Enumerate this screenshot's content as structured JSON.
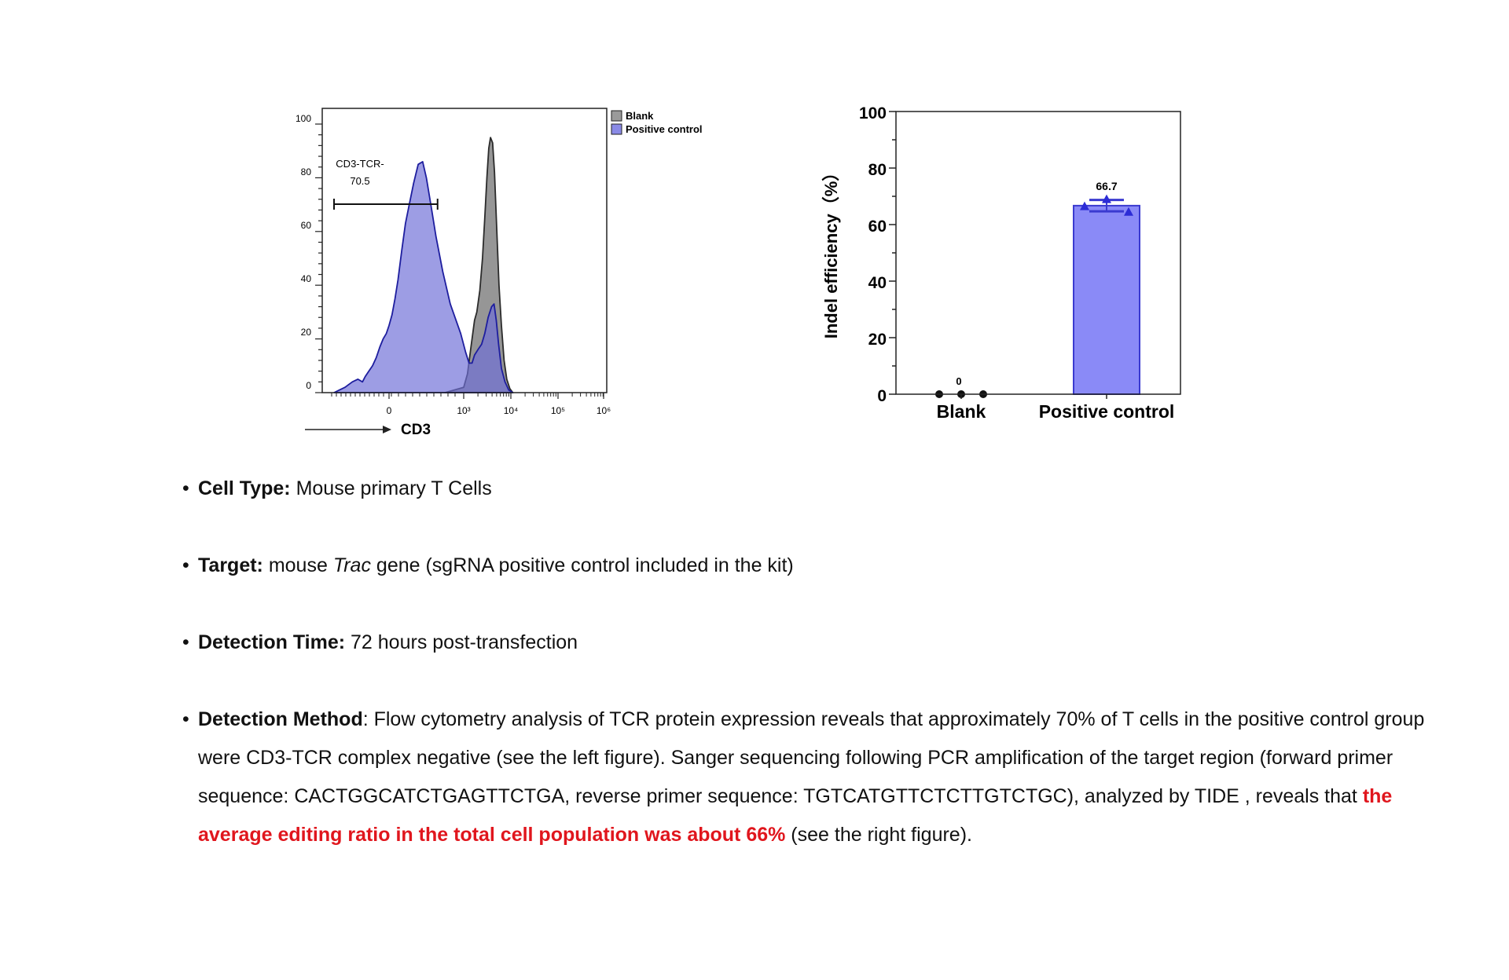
{
  "chart_data": [
    {
      "type": "area",
      "xlabel": "CD3",
      "xlabel_arrow": true,
      "x_scale": "log",
      "x_tick_labels": [
        "0",
        "10³",
        "10⁴",
        "10⁵",
        "10⁶"
      ],
      "y_tick_labels": [
        "0",
        "20",
        "40",
        "60",
        "80",
        "100"
      ],
      "ylim": [
        0,
        100
      ],
      "legend": {
        "placement": "top-right outside",
        "entries": [
          {
            "name": "Blank",
            "color": "#9a9a9a"
          },
          {
            "name": "Positive control",
            "color": "#8a8ae6"
          }
        ]
      },
      "gate": {
        "label": "CD3-TCR-",
        "value": "70.5",
        "range": [
          "-3000",
          "650"
        ]
      },
      "series": [
        {
          "name": "Blank",
          "color": "#909090",
          "points": [
            [
              750,
              0
            ],
            [
              1000,
              2
            ],
            [
              1200,
              7
            ],
            [
              1450,
              18
            ],
            [
              1700,
              27
            ],
            [
              1900,
              30
            ],
            [
              2200,
              38
            ],
            [
              2500,
              50
            ],
            [
              2800,
              65
            ],
            [
              3100,
              80
            ],
            [
              3400,
              91
            ],
            [
              3700,
              95
            ],
            [
              4100,
              93
            ],
            [
              4500,
              82
            ],
            [
              5000,
              62
            ],
            [
              5600,
              40
            ],
            [
              6300,
              25
            ],
            [
              7200,
              12
            ],
            [
              8200,
              5
            ],
            [
              9500,
              1.5
            ],
            [
              11000,
              0
            ]
          ]
        },
        {
          "name": "Positive control",
          "color": "#8585e0",
          "points": [
            [
              -3000,
              0
            ],
            [
              -2700,
              1
            ],
            [
              -2400,
              2
            ],
            [
              -2200,
              3
            ],
            [
              -2000,
              4
            ],
            [
              -1700,
              5
            ],
            [
              -1450,
              4
            ],
            [
              -1300,
              6
            ],
            [
              -1100,
              8
            ],
            [
              -900,
              10
            ],
            [
              -700,
              13
            ],
            [
              -500,
              17
            ],
            [
              -320,
              20
            ],
            [
              -150,
              22
            ],
            [
              0,
              25
            ],
            [
              40,
              29
            ],
            [
              80,
              35
            ],
            [
              120,
              42
            ],
            [
              170,
              53
            ],
            [
              220,
              63
            ],
            [
              270,
              70
            ],
            [
              330,
              78
            ],
            [
              390,
              85
            ],
            [
              450,
              86
            ],
            [
              500,
              80
            ],
            [
              560,
              70
            ],
            [
              630,
              58
            ],
            [
              720,
              45
            ],
            [
              820,
              33
            ],
            [
              960,
              22
            ],
            [
              1100,
              15
            ],
            [
              1300,
              11
            ],
            [
              1500,
              11
            ],
            [
              1700,
              14
            ],
            [
              2000,
              16
            ],
            [
              2400,
              18
            ],
            [
              2800,
              22
            ],
            [
              3300,
              28
            ],
            [
              3900,
              32
            ],
            [
              4400,
              33
            ],
            [
              4900,
              27
            ],
            [
              5500,
              18
            ],
            [
              6300,
              9
            ],
            [
              7500,
              4
            ],
            [
              9000,
              1
            ],
            [
              11000,
              0
            ]
          ]
        }
      ]
    },
    {
      "type": "bar",
      "categories": [
        "Blank",
        "Positive control"
      ],
      "values": [
        0,
        66.7
      ],
      "value_labels": [
        "0",
        "66.7"
      ],
      "error": [
        0,
        2
      ],
      "ylabel": "Indel efficiency（%）",
      "y_tick_labels": [
        "0",
        "20",
        "40",
        "60",
        "80",
        "100"
      ],
      "ylim": [
        0,
        100
      ],
      "bar_color": "#8a8af7",
      "bar_edge": "#3a3ad0",
      "points": [
        [
          0,
          0,
          0
        ],
        [
          66.5,
          69.0,
          64.5
        ]
      ]
    }
  ],
  "bullets": {
    "cell_type": {
      "label": "Cell Type:",
      "text": " Mouse primary T Cells"
    },
    "target": {
      "label": "Target:",
      "text_before": " mouse ",
      "gene": "Trac",
      "text_after": " gene (sgRNA positive control included in the kit)"
    },
    "detection_time": {
      "label": "Detection Time:",
      "text": " 72 hours post-transfection"
    },
    "detection_method": {
      "label": "Detection Method",
      "text": ": Flow cytometry analysis of TCR protein expression reveals that approximately 70% of T cells in the positive control group were CD3-TCR complex negative (see the left figure). Sanger sequencing following PCR amplification of the target region (forward primer sequence: CACTGGCATCTGAGTTCTGA, reverse primer sequence: TGTCATGTTCTCTTGTCTGC), analyzed by TIDE , reveals that ",
      "highlight": "the average editing ratio in the total cell population was about 66%",
      "text_end": " (see the right figure)."
    }
  },
  "bullet_symbol": "•"
}
